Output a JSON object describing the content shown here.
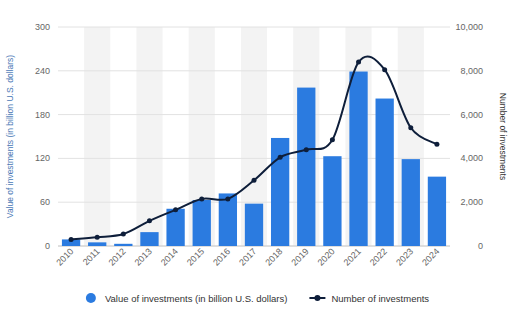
{
  "chart_data": {
    "type": "bar",
    "categories": [
      "2010",
      "2011",
      "2012",
      "2013",
      "2014",
      "2015",
      "2016",
      "2017",
      "2018",
      "2019",
      "2020",
      "2021",
      "2022",
      "2023",
      "2024"
    ],
    "series": [
      {
        "name": "Value of investments (in billion U.S. dollars)",
        "type": "bar",
        "color": "#2b7be0",
        "values": [
          9,
          5,
          3,
          19,
          51,
          63,
          72,
          58,
          148,
          217,
          123,
          239,
          202,
          119,
          95
        ]
      },
      {
        "name": "Number of investments",
        "type": "line",
        "color": "#0e1e3a",
        "marker": "circle",
        "axis": "y2",
        "values": [
          300,
          400,
          550,
          1150,
          1650,
          2150,
          2150,
          3000,
          4050,
          4400,
          4850,
          8400,
          8050,
          5400,
          4650
        ]
      }
    ],
    "y_label": "Value of investments (in billion U.S. dollars)",
    "y2_label": "Number of investments",
    "ylim": [
      0,
      300
    ],
    "yticks": [
      0,
      60,
      120,
      180,
      240,
      300
    ],
    "y2lim": [
      0,
      10000
    ],
    "y2ticks": [
      0,
      {
        "value": 2000,
        "label": "2,000"
      },
      {
        "value": 4000,
        "label": "4,000"
      },
      {
        "value": 6000,
        "label": "6,000"
      },
      {
        "value": 8000,
        "label": "8,000"
      },
      {
        "value": 10000,
        "label": "10,000"
      }
    ],
    "grid": true,
    "legend": "bottom"
  }
}
